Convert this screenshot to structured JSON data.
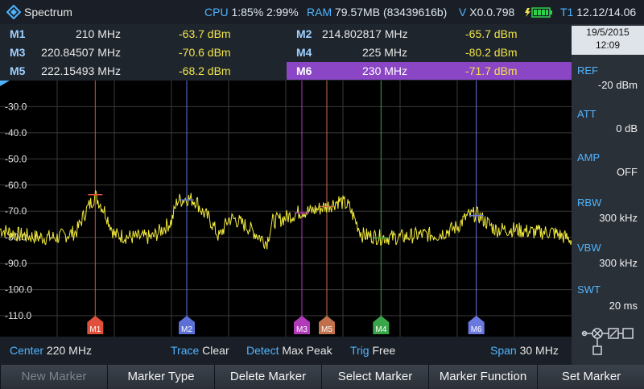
{
  "topbar": {
    "title": "Spectrum",
    "cpu_label": "CPU",
    "cpu_value": "1:85% 2:99%",
    "ram_label": "RAM",
    "ram_value": "79.57MB (83439616b)",
    "version_label": "V",
    "version_value": "X0.0.798",
    "temp_label": "T1",
    "temp_value": "12.12/14.06",
    "battery_icon": "battery-charging-icon"
  },
  "markers_table": {
    "rows": [
      {
        "left": {
          "name": "M1",
          "freq": "210 MHz",
          "amp": "-63.7 dBm"
        },
        "right": {
          "name": "M2",
          "freq": "214.802817 MHz",
          "amp": "-65.7 dBm"
        }
      },
      {
        "left": {
          "name": "M3",
          "freq": "220.84507 MHz",
          "amp": "-70.6 dBm"
        },
        "right": {
          "name": "M4",
          "freq": "225 MHz",
          "amp": "-80.2 dBm"
        }
      },
      {
        "left": {
          "name": "M5",
          "freq": "222.15493 MHz",
          "amp": "-68.2 dBm"
        },
        "right": {
          "name": "M6",
          "freq": "230 MHz",
          "amp": "-71.7 dBm"
        }
      }
    ],
    "selected": "M6"
  },
  "side_panel": {
    "date": "19/5/2015",
    "time": "12:09",
    "ref_label": "REF",
    "ref_value": "-20 dBm",
    "att_label": "ATT",
    "att_value": "0 dB",
    "amp_label": "AMP",
    "amp_value": "OFF",
    "rbw_label": "RBW",
    "rbw_value": "300 kHz",
    "vbw_label": "VBW",
    "vbw_value": "300 kHz",
    "swt_label": "SWT",
    "swt_value": "20 ms",
    "signal_path_icon": "signal-path-icon"
  },
  "footer": {
    "center_label": "Center",
    "center_value": "220 MHz",
    "trace_label": "Trace",
    "trace_value": "Clear",
    "detect_label": "Detect",
    "detect_value": "Max Peak",
    "trig_label": "Trig",
    "trig_value": "Free",
    "span_label": "Span",
    "span_value": "30 MHz"
  },
  "softkeys": [
    "New Marker",
    "Marker Type",
    "Delete Marker",
    "Select Marker",
    "Marker Function",
    "Set Marker"
  ],
  "colors": {
    "accent": "#4fb4ff",
    "trace": "#f2ea3c",
    "selected_row": "#8a46c4",
    "m1": "#e0503a",
    "m2": "#5b6fd6",
    "m3": "#b03ab8",
    "m4": "#3aa64a",
    "m5": "#c0704a",
    "m6": "#6a78e0"
  },
  "chart_data": {
    "type": "line",
    "xlabel": "",
    "ylabel": "",
    "x_unit": "MHz",
    "y_unit": "dBm",
    "xlim": [
      205,
      235
    ],
    "ylim": [
      -118,
      -20
    ],
    "y_ticks": [
      -30.0,
      -40.0,
      -50.0,
      -60.0,
      -70.0,
      -80.0,
      -90.0,
      -100.0,
      -110.0
    ],
    "y_tick_labels": [
      "-30.0",
      "-40.0",
      "-50.0",
      "-60.0",
      "-70.0",
      "-80.0",
      "-90.0",
      "-100.0",
      "-110.0"
    ],
    "grid": true,
    "series": [
      {
        "x": [
          205,
          206,
          207,
          208,
          209,
          209.5,
          210,
          210.5,
          211,
          212,
          213,
          214,
          214.3,
          214.8,
          215.3,
          215.6,
          216,
          216.5,
          217,
          217.3,
          218,
          219,
          219.3,
          219.8,
          220.5,
          220.8,
          221.3,
          222.2,
          222.8,
          223.3,
          224,
          225,
          226,
          227,
          228,
          229,
          229.5,
          230,
          230.5,
          231,
          232,
          233,
          234,
          235
        ],
        "y": [
          -77,
          -79,
          -80,
          -80,
          -78,
          -70,
          -64,
          -70,
          -79,
          -80,
          -80,
          -74,
          -66,
          -65,
          -66,
          -70,
          -73,
          -80,
          -73,
          -73,
          -76,
          -82,
          -74,
          -73,
          -71,
          -70,
          -70,
          -68,
          -66,
          -68,
          -79,
          -80,
          -80,
          -79,
          -79,
          -76,
          -72,
          -71,
          -74,
          -77,
          -77,
          -78,
          -78,
          -81
        ]
      }
    ],
    "markers": [
      {
        "name": "M1",
        "x": 210,
        "y": -63.7
      },
      {
        "name": "M2",
        "x": 214.802817,
        "y": -65.7
      },
      {
        "name": "M3",
        "x": 220.84507,
        "y": -70.6
      },
      {
        "name": "M4",
        "x": 225,
        "y": -80.2
      },
      {
        "name": "M5",
        "x": 222.15493,
        "y": -68.2
      },
      {
        "name": "M6",
        "x": 230,
        "y": -71.7
      }
    ]
  }
}
